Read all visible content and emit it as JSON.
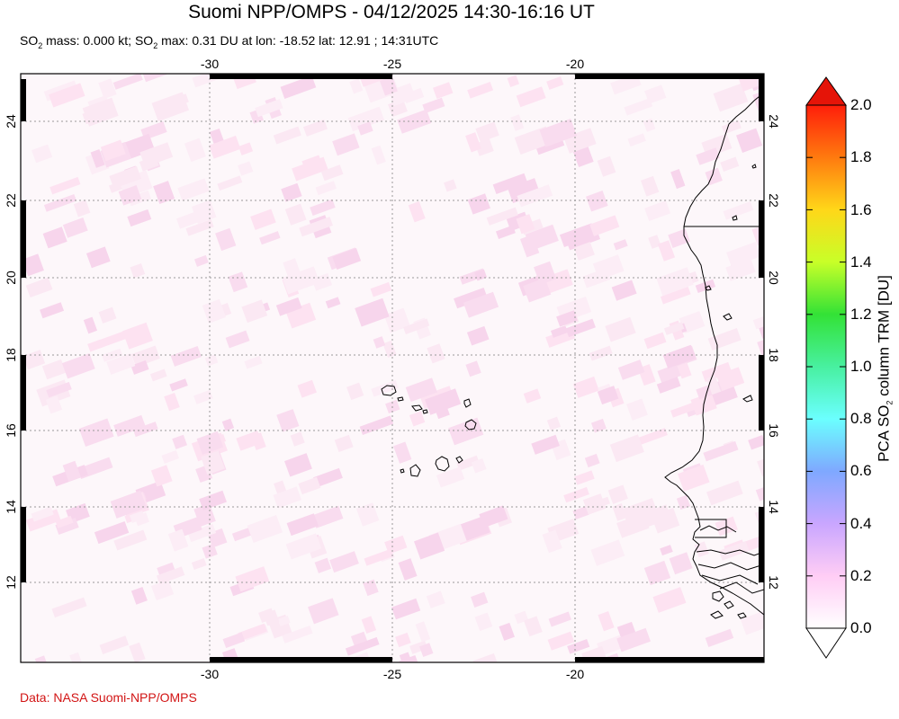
{
  "header": {
    "title": "Suomi NPP/OMPS - 04/12/2025 14:30-16:16 UT",
    "subtitle_pre": "SO",
    "subtitle_sub1": "2",
    "subtitle_mid": " mass: 0.000 kt; SO",
    "subtitle_sub2": "2",
    "subtitle_post": " max: 0.31 DU at lon: -18.52 lat: 12.91 ; 14:31UTC"
  },
  "map": {
    "lon_ticks": [
      "-30",
      "-25",
      "-20"
    ],
    "lat_ticks": [
      "24",
      "22",
      "20",
      "18",
      "16",
      "14",
      "12"
    ],
    "background_color": "#fdf7fa",
    "coast_color": "#000000",
    "grid_color": "#9a9a9a"
  },
  "colorbar": {
    "label_pre": "PCA SO",
    "label_sub": "2",
    "label_post": " column TRM [DU]",
    "ticks": [
      "2.0",
      "1.8",
      "1.6",
      "1.4",
      "1.2",
      "1.0",
      "0.8",
      "0.6",
      "0.4",
      "0.2",
      "0.0"
    ],
    "colors": [
      "#ffffff",
      "#ffcdf5",
      "#c9a6ff",
      "#7fa8ff",
      "#6bffff",
      "#48f0a0",
      "#33e236",
      "#c8ff28",
      "#ffd719",
      "#ff7a0f",
      "#ff1e0a"
    ],
    "top_arrow_color": "#e51408",
    "bottom_arrow_color": "#ffffff"
  },
  "footer": {
    "credit": "Data: NASA Suomi-NPP/OMPS"
  }
}
